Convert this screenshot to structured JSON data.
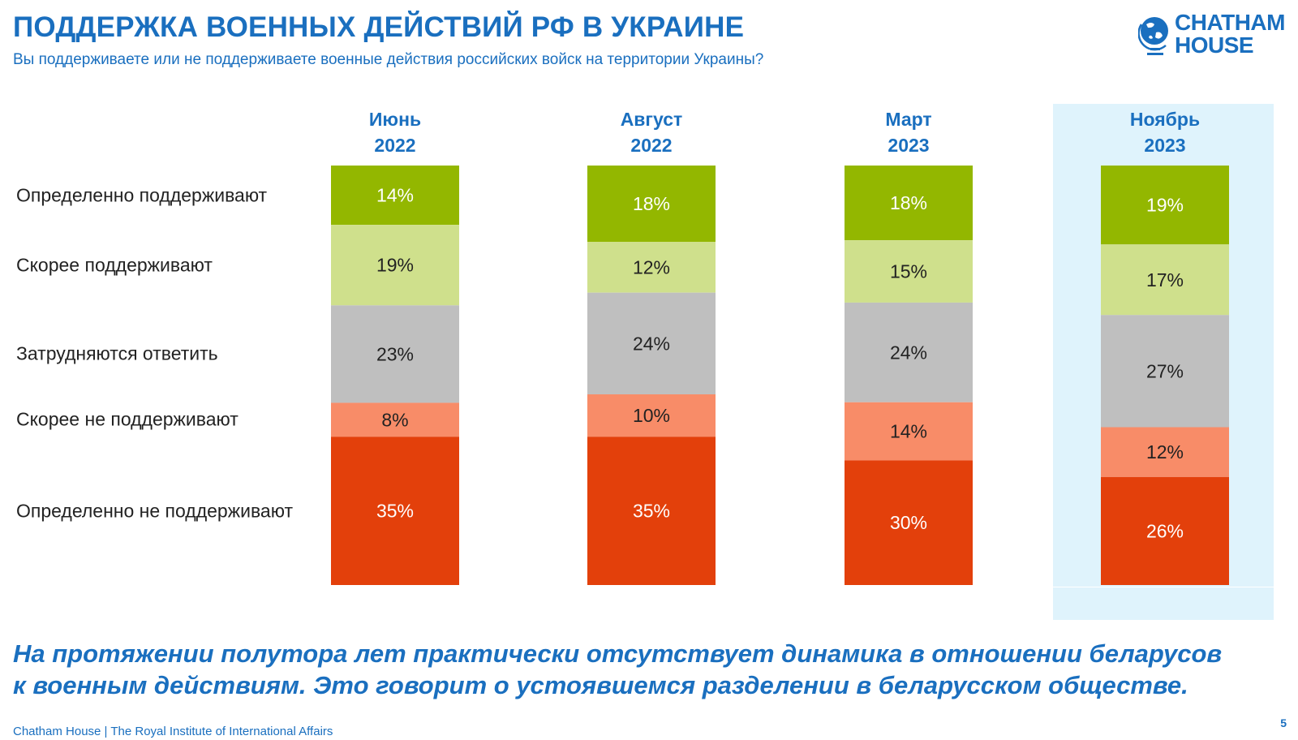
{
  "header": {
    "title": "ПОДДЕРЖКА ВОЕННЫХ ДЕЙСТВИЙ РФ В УКРАИНЕ",
    "subtitle": "Вы поддерживаете или не поддерживаете военные действия российских войск на территории Украины?"
  },
  "logo": {
    "line1": "CHATHAM",
    "line2": "HOUSE"
  },
  "colors": {
    "brand": "#1a6fbf",
    "definitely_support": "#93b700",
    "rather_support": "#cfe08c",
    "hard_to_say": "#bfbfbf",
    "rather_not_support": "#f88c68",
    "definitely_not_support": "#e3400b",
    "highlight": "#dff3fc"
  },
  "chart_data": {
    "type": "stacked-bar",
    "title": "ПОДДЕРЖКА ВОЕННЫХ ДЕЙСТВИЙ РФ В УКРАИНЕ",
    "periods": [
      {
        "month": "Июнь",
        "year": "2022",
        "highlight": false
      },
      {
        "month": "Август",
        "year": "2022",
        "highlight": false
      },
      {
        "month": "Март",
        "year": "2023",
        "highlight": false
      },
      {
        "month": "Ноябрь",
        "year": "2023",
        "highlight": true
      }
    ],
    "unit": "%",
    "series": [
      {
        "name": "Определенно поддерживают",
        "color": "#93b700",
        "text_color": "#ffffff",
        "values": [
          14,
          18,
          18,
          19
        ]
      },
      {
        "name": "Скорее поддерживают",
        "color": "#cfe08c",
        "text_color": "#222222",
        "values": [
          19,
          12,
          15,
          17
        ]
      },
      {
        "name": "Затрудняются ответить",
        "color": "#bfbfbf",
        "text_color": "#222222",
        "values": [
          23,
          24,
          24,
          27
        ]
      },
      {
        "name": "Скорее не поддерживают",
        "color": "#f88c68",
        "text_color": "#222222",
        "values": [
          8,
          10,
          14,
          12
        ]
      },
      {
        "name": "Определенно не поддерживают",
        "color": "#e3400b",
        "text_color": "#ffffff",
        "values": [
          35,
          35,
          30,
          26
        ]
      }
    ]
  },
  "conclusion": {
    "line1": "На протяжении полутора лет практически отсутствует динамика в отношении беларусов",
    "line2": "к военным действиям. Это говорит о устоявшемся разделении в беларусском обществе."
  },
  "footer": {
    "text": "Chatham House  |  The Royal Institute of International Affairs",
    "page_number": "5"
  }
}
